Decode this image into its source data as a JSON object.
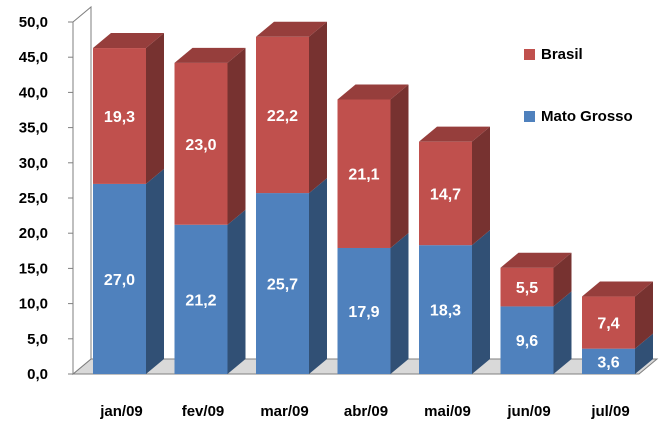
{
  "chart_data": {
    "type": "bar",
    "stacked": true,
    "three_d": true,
    "categories": [
      "jan/09",
      "fev/09",
      "mar/09",
      "abr/09",
      "mai/09",
      "jun/09",
      "jul/09"
    ],
    "series": [
      {
        "name": "Mato Grosso",
        "color": "#4f81bd",
        "values": [
          27.0,
          21.2,
          25.7,
          17.9,
          18.3,
          9.6,
          3.6
        ],
        "labels": [
          "27,0",
          "21,2",
          "25,7",
          "17,9",
          "18,3",
          "9,6",
          "3,6"
        ]
      },
      {
        "name": "Brasil",
        "color": "#c0504d",
        "values": [
          19.3,
          23.0,
          22.2,
          21.1,
          14.7,
          5.5,
          7.4
        ],
        "labels": [
          "19,3",
          "23,0",
          "22,2",
          "21,1",
          "14,7",
          "5,5",
          "7,4"
        ]
      }
    ],
    "y_ticks": [
      "0,0",
      "5,0",
      "10,0",
      "15,0",
      "20,0",
      "25,0",
      "30,0",
      "35,0",
      "40,0",
      "45,0",
      "50,0"
    ],
    "ylim": [
      0,
      50
    ],
    "grid": false,
    "legend_position": "right",
    "legend": [
      {
        "name": "Brasil",
        "color": "#c0504d"
      },
      {
        "name": "Mato Grosso",
        "color": "#4f81bd"
      }
    ]
  }
}
